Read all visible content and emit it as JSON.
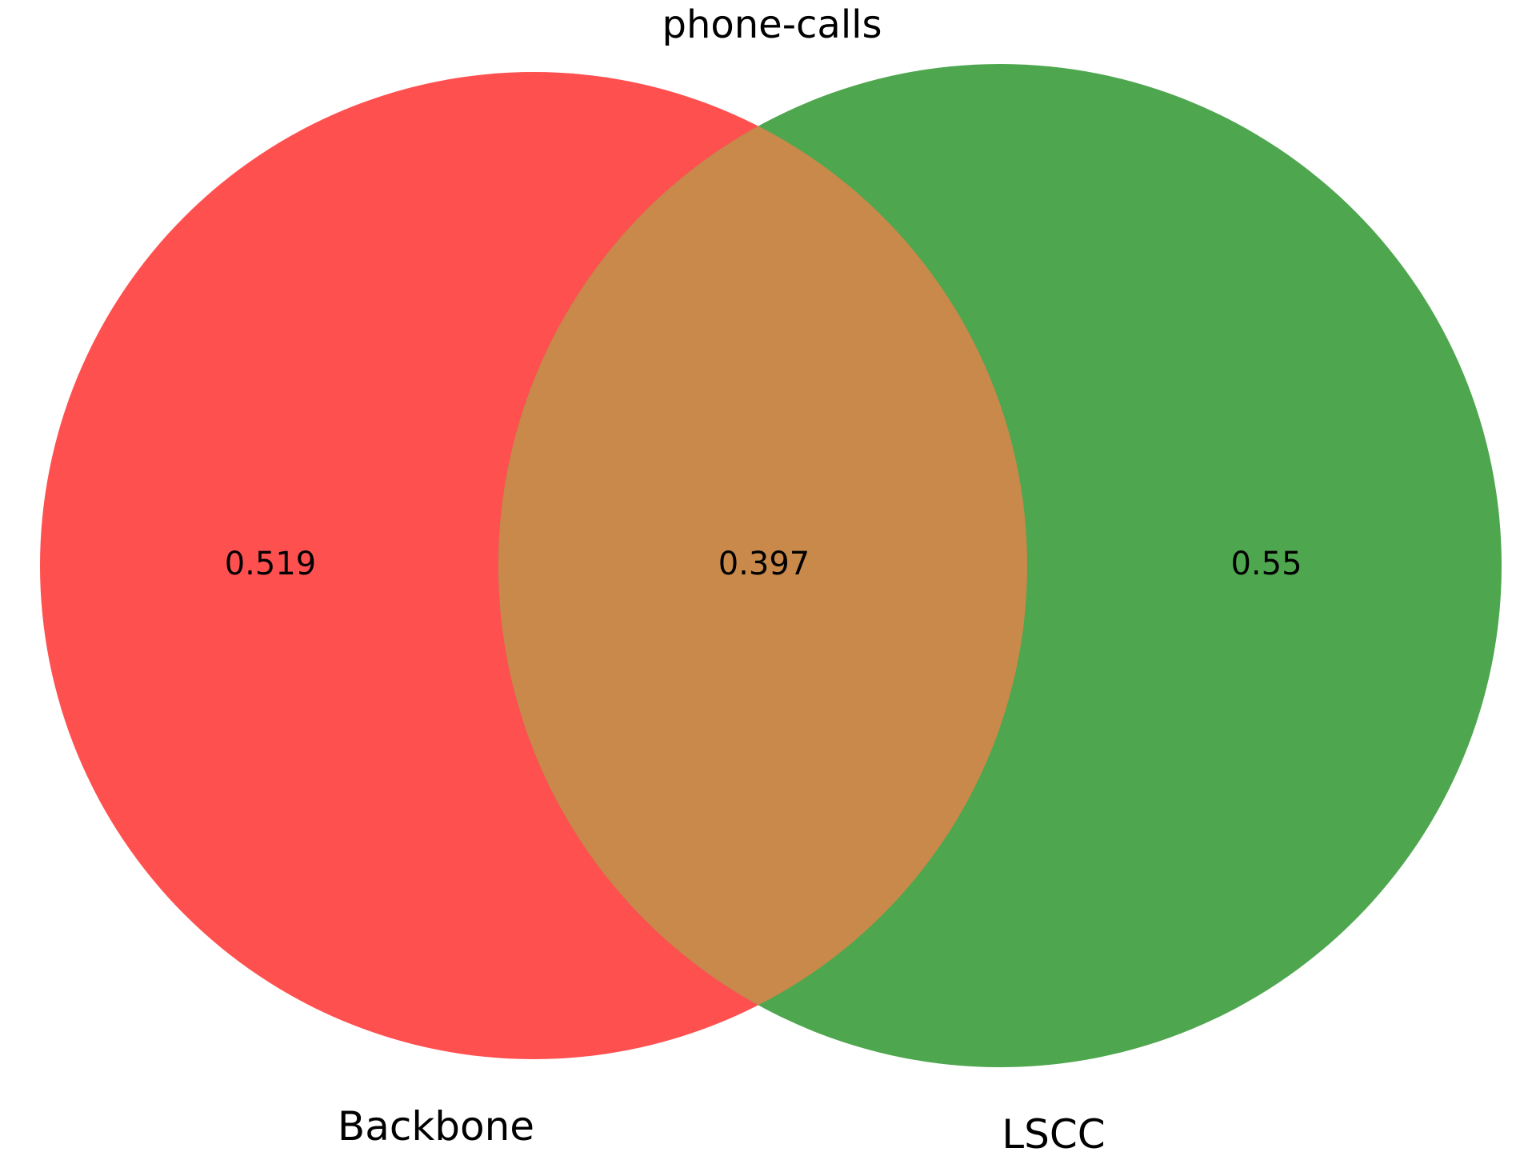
{
  "title": "phone-calls",
  "sets": [
    {
      "name": "Backbone",
      "color": "#ff5050"
    },
    {
      "name": "LSCC",
      "color": "#4ea64e"
    }
  ],
  "regions": {
    "left_only": "0.519",
    "overlap": "0.397",
    "right_only": "0.55"
  },
  "overlap_color": "#c8894b"
}
